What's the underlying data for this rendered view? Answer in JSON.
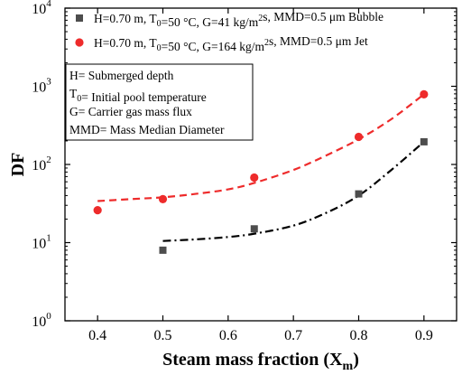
{
  "chart_data": {
    "type": "scatter",
    "xlabel": {
      "main": "Steam mass fraction (X",
      "sub": "m",
      "end": ")"
    },
    "ylabel": "DF",
    "xlim": [
      0.35,
      0.95
    ],
    "ylim": [
      1,
      10000
    ],
    "y_scale": "log",
    "x_ticks": [
      "0.4",
      "0.5",
      "0.6",
      "0.7",
      "0.8",
      "0.9"
    ],
    "y_ticks": [
      {
        "value": 1,
        "base": "10",
        "exp": "0"
      },
      {
        "value": 10,
        "base": "10",
        "exp": "1"
      },
      {
        "value": 100,
        "base": "10",
        "exp": "2"
      },
      {
        "value": 1000,
        "base": "10",
        "exp": "3"
      },
      {
        "value": 10000,
        "base": "10",
        "exp": "4"
      }
    ],
    "grid": false,
    "legend_position": "top",
    "series": [
      {
        "name": "H=0.70 m, T0=50 °C, G=41 kg/m2s, MMD=0.5 μm  Bubble",
        "legend_parts": [
          "H=0.70 m, T",
          "0",
          "=50 °C, G=41 kg/m",
          "2",
          "s, MMD=0.5 μm  Bubble"
        ],
        "marker": "square",
        "color": "#4d4d4d",
        "fit_color": "#000000",
        "fit_style": "dash-dot",
        "x": [
          0.5,
          0.64,
          0.8,
          0.9
        ],
        "y": [
          8,
          15,
          42,
          195
        ],
        "fit_x": [
          0.5,
          0.55,
          0.6,
          0.64,
          0.7,
          0.75,
          0.8,
          0.85,
          0.9
        ],
        "fit_y": [
          10.5,
          11,
          11.8,
          13,
          16.5,
          24,
          40,
          85,
          195
        ]
      },
      {
        "name": "H=0.70 m, T0=50 °C, G=164 kg/m2s, MMD=0.5 μm  Jet",
        "legend_parts": [
          "H=0.70 m, T",
          "0",
          "=50 °C, G=164 kg/m",
          "2",
          "s, MMD=0.5 μm  Jet"
        ],
        "marker": "circle",
        "color": "#ee2b2b",
        "fit_color": "#ee2b2b",
        "fit_style": "dashed",
        "x": [
          0.4,
          0.5,
          0.64,
          0.8,
          0.9
        ],
        "y": [
          26,
          36,
          68,
          225,
          790
        ],
        "fit_x": [
          0.4,
          0.45,
          0.5,
          0.55,
          0.6,
          0.64,
          0.7,
          0.75,
          0.8,
          0.85,
          0.9
        ],
        "fit_y": [
          34,
          36,
          38,
          42,
          48,
          58,
          85,
          130,
          210,
          380,
          790
        ]
      }
    ],
    "annotation_lines": [
      [
        "H= Submerged depth"
      ],
      [
        "T",
        "0",
        "=  Initial pool temperature"
      ],
      [
        "G= Carrier gas mass flux"
      ],
      [
        "MMD= Mass Median Diameter"
      ]
    ]
  }
}
